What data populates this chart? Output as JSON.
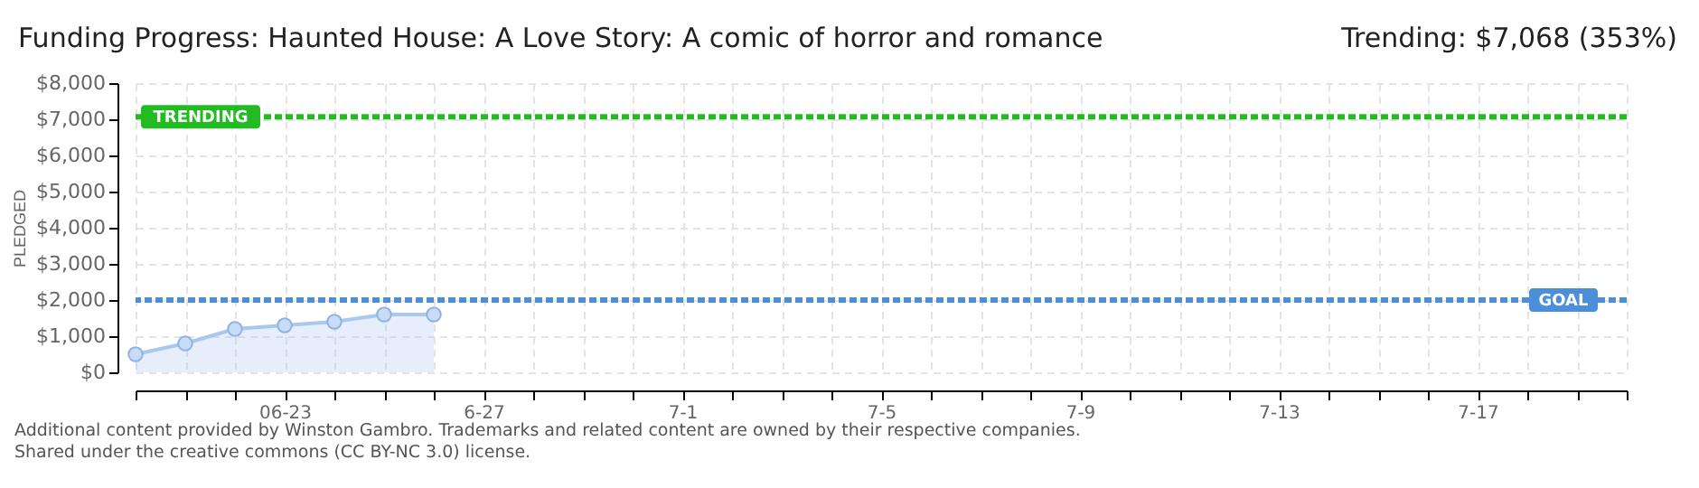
{
  "chart_data": {
    "type": "area",
    "title": "Funding Progress: Haunted House: A Love Story: A comic of horror and romance",
    "subtitle": "Trending: $7,068 (353%)",
    "ylabel": "PLEDGED",
    "x": [
      "--06-20",
      "--06-21",
      "--06-22",
      "--06-23",
      "--06-24",
      "--06-25",
      "--06-26"
    ],
    "series": [
      {
        "color": "#a9c8ee",
        "values": [
          500,
          800,
          1200,
          1300,
          1400,
          1600,
          1600
        ]
      }
    ],
    "xlim": [
      "--06-20",
      "--07-20"
    ],
    "xticks": [
      {
        "value": "--06-20",
        "label": null
      },
      {
        "value": "--06-21",
        "label": null
      },
      {
        "value": "--06-22",
        "label": null
      },
      {
        "value": "--06-23",
        "label": "06-23"
      },
      {
        "value": "--06-24",
        "label": null
      },
      {
        "value": "--06-25",
        "label": null
      },
      {
        "value": "--06-26",
        "label": null
      },
      {
        "value": "--06-27",
        "label": "6-27"
      },
      {
        "value": "--06-28",
        "label": null
      },
      {
        "value": "--06-29",
        "label": null
      },
      {
        "value": "--06-30",
        "label": null
      },
      {
        "value": "--07-01",
        "label": "7-1"
      },
      {
        "value": "--07-02",
        "label": null
      },
      {
        "value": "--07-03",
        "label": null
      },
      {
        "value": "--07-04",
        "label": null
      },
      {
        "value": "--07-05",
        "label": "7-5"
      },
      {
        "value": "--07-06",
        "label": null
      },
      {
        "value": "--07-07",
        "label": null
      },
      {
        "value": "--07-08",
        "label": null
      },
      {
        "value": "--07-09",
        "label": "7-9"
      },
      {
        "value": "--07-10",
        "label": null
      },
      {
        "value": "--07-11",
        "label": null
      },
      {
        "value": "--07-12",
        "label": null
      },
      {
        "value": "--07-13",
        "label": "7-13"
      },
      {
        "value": "--07-14",
        "label": null
      },
      {
        "value": "--07-15",
        "label": null
      },
      {
        "value": "--07-16",
        "label": null
      },
      {
        "value": "--07-17",
        "label": "7-17"
      },
      {
        "value": "--07-18",
        "label": null
      },
      {
        "value": "--07-19",
        "label": null
      },
      {
        "value": "--07-20",
        "label": null
      }
    ],
    "ylim": [
      0,
      8000
    ],
    "yticks": [
      {
        "value": 0,
        "label": "$0"
      },
      {
        "value": 1000,
        "label": "$1,000"
      },
      {
        "value": 2000,
        "label": "$2,000"
      },
      {
        "value": 3000,
        "label": "$3,000"
      },
      {
        "value": 4000,
        "label": "$4,000"
      },
      {
        "value": 5000,
        "label": "$5,000"
      },
      {
        "value": 6000,
        "label": "$6,000"
      },
      {
        "value": 7000,
        "label": "$7,000"
      },
      {
        "value": 8000,
        "label": "$8,000"
      }
    ],
    "ref_lines": [
      {
        "axis": "y",
        "value": 7068,
        "label": "TRENDING",
        "color": "#22bb22",
        "line_style": "dashed"
      },
      {
        "axis": "y",
        "value": 2000,
        "label": "GOAL",
        "color": "#4a8fd8",
        "line_style": "dashed"
      }
    ],
    "grid": true,
    "marker": "circle",
    "annotations": [
      "Additional content provided by Winston Gambro. Trademarks and related content are owned by their respective companies.",
      "Shared under the creative commons (CC BY-NC 3.0) license."
    ]
  }
}
